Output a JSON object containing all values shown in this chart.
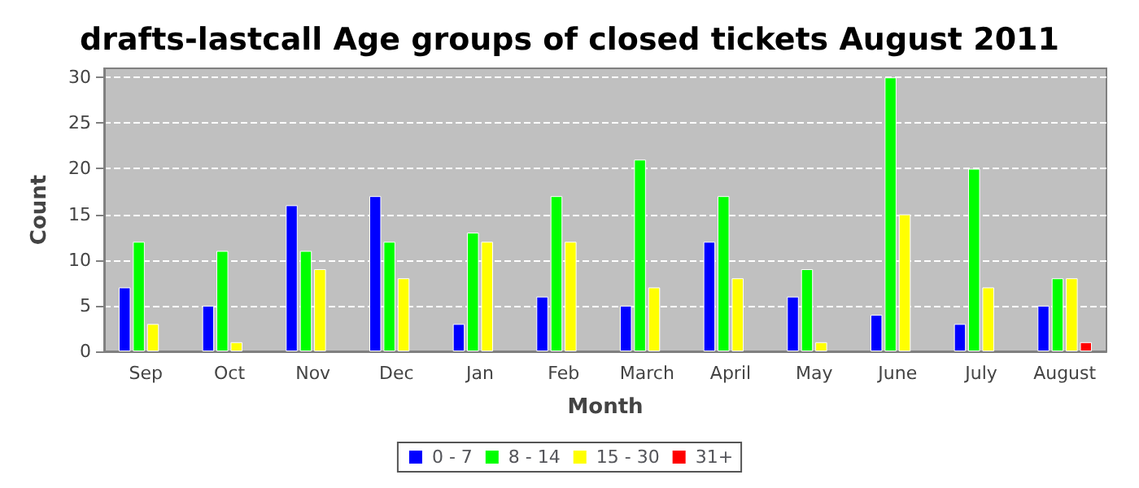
{
  "chart_data": {
    "type": "bar",
    "title": "drafts-lastcall Age groups of closed tickets August 2011",
    "xlabel": "Month",
    "ylabel": "Count",
    "categories": [
      "Sep",
      "Oct",
      "Nov",
      "Dec",
      "Jan",
      "Feb",
      "March",
      "April",
      "May",
      "June",
      "July",
      "August"
    ],
    "series": [
      {
        "name": "0 - 7",
        "color": "#0000ff",
        "values": [
          7,
          5,
          16,
          17,
          3,
          6,
          5,
          12,
          6,
          4,
          3,
          5
        ]
      },
      {
        "name": "8 - 14",
        "color": "#00ff00",
        "values": [
          12,
          11,
          11,
          12,
          13,
          17,
          21,
          17,
          9,
          30,
          20,
          8
        ]
      },
      {
        "name": "15 - 30",
        "color": "#ffff00",
        "values": [
          3,
          1,
          9,
          8,
          12,
          12,
          7,
          8,
          1,
          15,
          7,
          8
        ]
      },
      {
        "name": "31+",
        "color": "#ff0000",
        "values": [
          null,
          null,
          null,
          null,
          null,
          null,
          null,
          null,
          null,
          null,
          null,
          1
        ]
      }
    ],
    "ylim": [
      0,
      31
    ],
    "yticks": [
      0,
      5,
      10,
      15,
      20,
      25,
      30
    ],
    "grid": "y",
    "legend": "bottom"
  }
}
